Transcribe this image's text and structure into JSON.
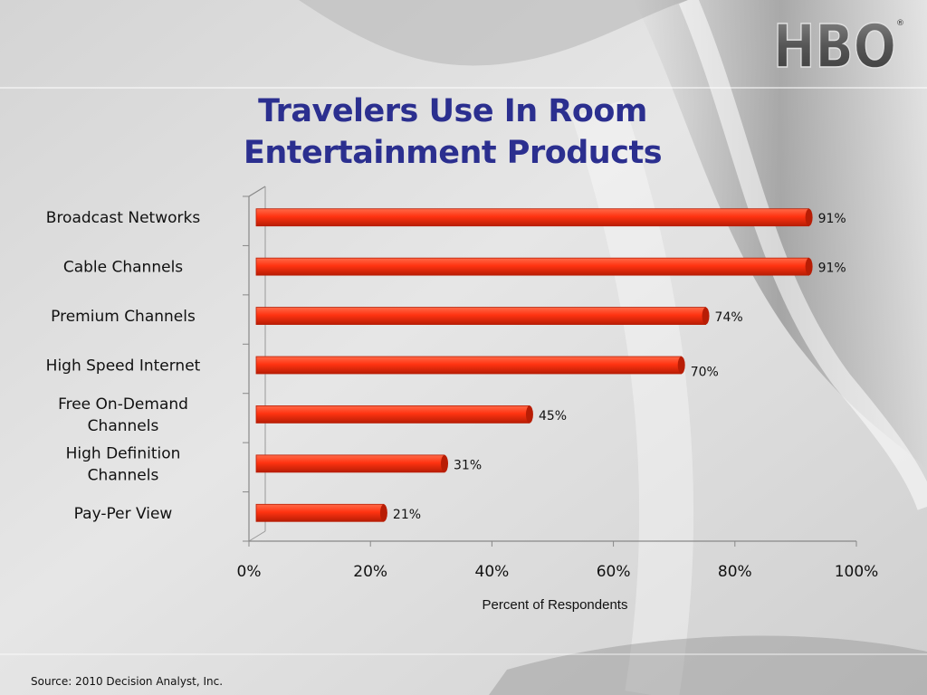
{
  "logo": {
    "text": "HBO",
    "registered": "®"
  },
  "title": {
    "line1": "Travelers Use In Room",
    "line2": "Entertainment Products"
  },
  "source": "Source: 2010 Decision Analyst, Inc.",
  "colors": {
    "bar": "#ff3311",
    "bar_dark": "#b81d05",
    "title": "#2b2f8f"
  },
  "chart_data": {
    "type": "bar",
    "orientation": "horizontal",
    "categories": [
      "Broadcast Networks",
      "Cable Channels",
      "Premium Channels",
      "High Speed Internet",
      "Free On-Demand Channels",
      "High Definition Channels",
      "Pay-Per View"
    ],
    "values": [
      91,
      91,
      74,
      70,
      45,
      31,
      21
    ],
    "value_labels": [
      "91%",
      "91%",
      "74%",
      "70%",
      "45%",
      "31%",
      "21%"
    ],
    "xlabel": "Percent of Respondents",
    "xlim": [
      0,
      100
    ],
    "xticks": [
      "0%",
      "20%",
      "40%",
      "60%",
      "80%",
      "100%"
    ],
    "grid": false,
    "legend": "none"
  }
}
